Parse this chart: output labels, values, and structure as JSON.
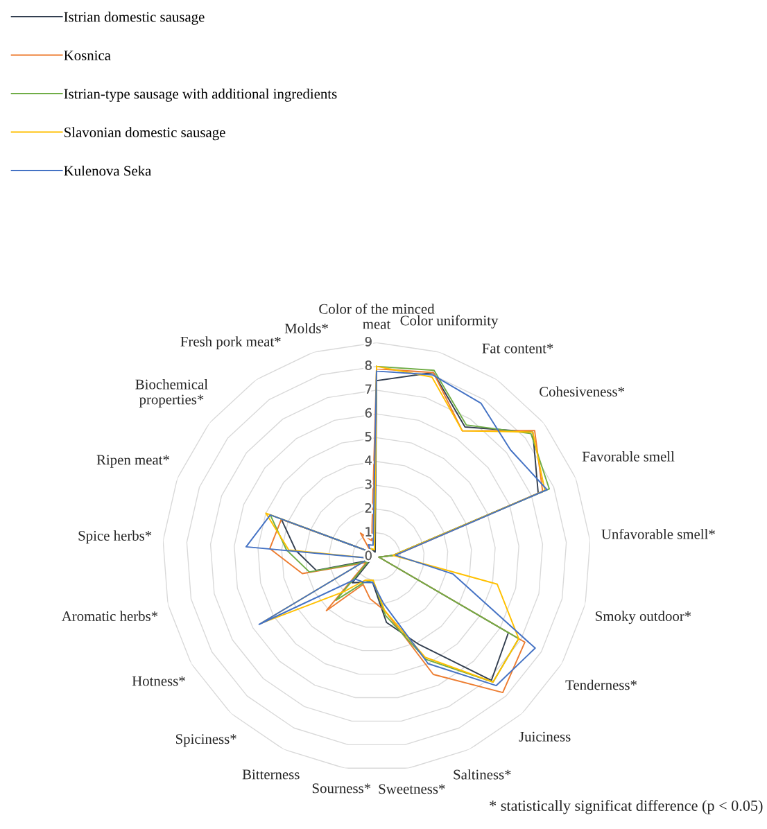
{
  "chart_data": {
    "type": "radar",
    "categories": [
      "Color of the minced meat",
      "Color uniformity",
      "Fat content*",
      "Cohesiveness*",
      "Favorable smell",
      "Unfavorable smell*",
      "Smoky outdoor*",
      "Tenderness*",
      "Juiciness",
      "Saltiness*",
      "Sweetness*",
      "Sourness*",
      "Bitterness",
      "Spiciness*",
      "Hotness*",
      "Aromatic herbs*",
      "Spice herbs*",
      "Ripen meat*",
      "Biochemical properties*",
      "Fresh pork meat*",
      "Molds*"
    ],
    "series": [
      {
        "name": "Istrian domestic sausage",
        "color": "#333f50",
        "values": [
          7.4,
          8.1,
          6.6,
          8.4,
          7.3,
          0.7,
          0.1,
          6.4,
          7.1,
          4.1,
          2.8,
          1.1,
          1.2,
          1.5,
          0.3,
          2.6,
          3.4,
          4.3,
          0.3,
          0.4,
          0.2
        ]
      },
      {
        "name": "Kosnica",
        "color": "#ed7d31",
        "values": [
          7.9,
          8.1,
          6.4,
          8.5,
          7.5,
          0.8,
          0.1,
          7.2,
          7.8,
          5.5,
          2.3,
          1.8,
          1.3,
          3.1,
          0.5,
          3.2,
          4.5,
          4.3,
          0.3,
          1.2,
          0.7
        ]
      },
      {
        "name": "Istrian-type sausage with additional ingredients",
        "color": "#70ad47",
        "values": [
          8.0,
          8.2,
          6.7,
          8.3,
          7.8,
          0.7,
          0.1,
          6.9,
          7.2,
          4.8,
          2.5,
          1.0,
          1.2,
          2.5,
          0.4,
          2.9,
          3.8,
          4.8,
          0.3,
          0.4,
          0.3
        ]
      },
      {
        "name": "Slavonian domestic sausage",
        "color": "#ffc000",
        "values": [
          8.0,
          7.9,
          6.4,
          8.4,
          7.6,
          0.7,
          5.2,
          6.9,
          7.2,
          4.7,
          2.3,
          1.0,
          1.1,
          2.0,
          5.6,
          0.3,
          3.7,
          5.0,
          0.3,
          0.4,
          0.3
        ]
      },
      {
        "name": "Kulenova Seka",
        "color": "#4472c4",
        "values": [
          7.8,
          8.0,
          7.8,
          7.2,
          7.7,
          0.8,
          3.3,
          7.7,
          7.4,
          5.0,
          2.0,
          1.1,
          1.2,
          1.3,
          5.7,
          0.3,
          5.5,
          4.8,
          0.3,
          0.6,
          0.5
        ]
      }
    ],
    "ylim": [
      0,
      9
    ],
    "yticks": [
      0,
      1,
      2,
      3,
      4,
      5,
      6,
      7,
      8,
      9
    ],
    "grid": true,
    "legend": "top left",
    "annotations": [
      "* statistically significat difference (p < 0.05)"
    ]
  }
}
